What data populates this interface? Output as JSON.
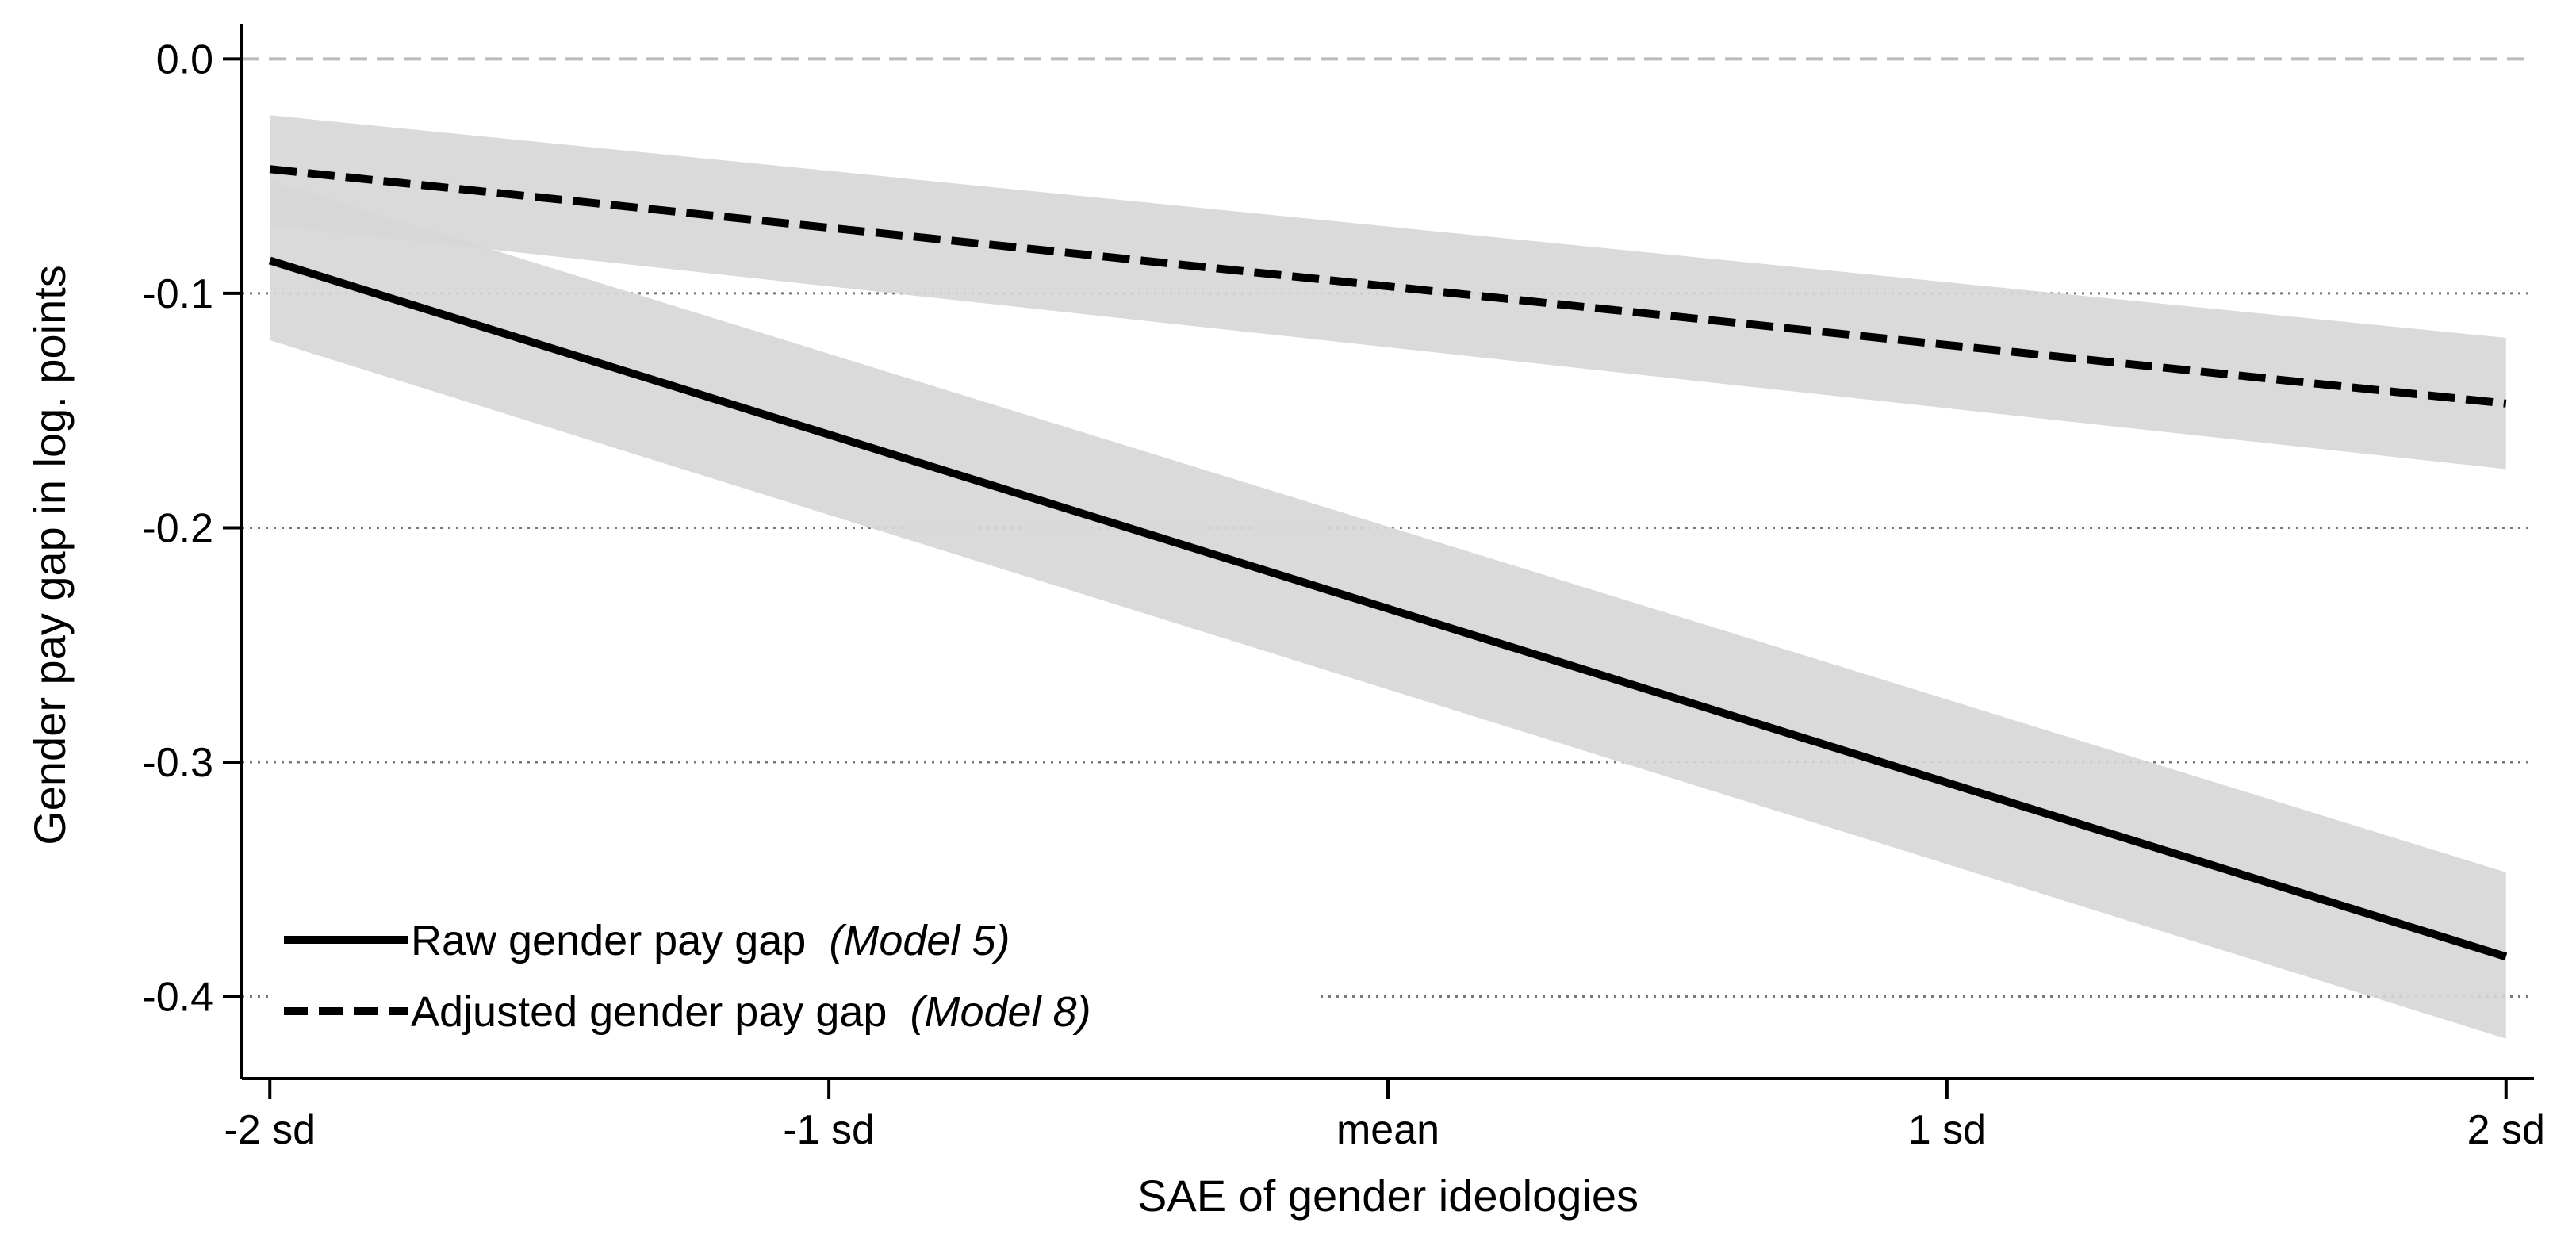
{
  "chart_data": {
    "type": "line",
    "xlabel": "SAE of gender ideologies",
    "ylabel": "Gender pay gap in log. points",
    "x_ticks": [
      {
        "value": -2,
        "label": "-2 sd"
      },
      {
        "value": -1,
        "label": "-1 sd"
      },
      {
        "value": 0,
        "label": "mean"
      },
      {
        "value": 1,
        "label": "1 sd"
      },
      {
        "value": 2,
        "label": "2 sd"
      }
    ],
    "y_ticks": [
      {
        "value": 0,
        "label": "0.0"
      },
      {
        "value": -0.1,
        "label": "-0.1"
      },
      {
        "value": -0.2,
        "label": "-0.2"
      },
      {
        "value": -0.3,
        "label": "-0.3"
      },
      {
        "value": -0.4,
        "label": "-0.4"
      }
    ],
    "xlim": [
      -2.05,
      2.05
    ],
    "ylim": [
      -0.435,
      0.015
    ],
    "reference_line": {
      "y": 0,
      "style": "dashed",
      "color": "#bbbbbb"
    },
    "grid": {
      "y": true,
      "style": "dotted",
      "color": "#777777"
    },
    "band_color": "#d6d6d6",
    "series": [
      {
        "name": "Raw gender pay gap",
        "model_note": "(Model 5)",
        "style": "solid",
        "color": "#000000",
        "x": [
          -2,
          2
        ],
        "y": [
          -0.086,
          -0.383
        ],
        "ci_lower": [
          -0.12,
          -0.418
        ],
        "ci_upper": [
          -0.052,
          -0.347
        ]
      },
      {
        "name": "Adjusted gender pay gap",
        "model_note": "(Model 8)",
        "style": "dashed",
        "color": "#000000",
        "x": [
          -2,
          2
        ],
        "y": [
          -0.047,
          -0.147
        ],
        "ci_lower": [
          -0.071,
          -0.175
        ],
        "ci_upper": [
          -0.024,
          -0.119
        ]
      }
    ],
    "legend": {
      "position": "bottom-left"
    }
  }
}
